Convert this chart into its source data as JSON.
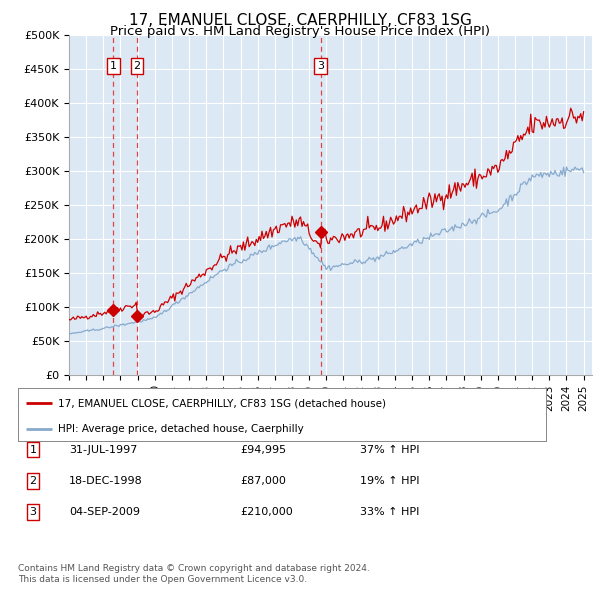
{
  "title": "17, EMANUEL CLOSE, CAERPHILLY, CF83 1SG",
  "subtitle": "Price paid vs. HM Land Registry's House Price Index (HPI)",
  "title_fontsize": 11,
  "subtitle_fontsize": 9.5,
  "ylim": [
    0,
    500000
  ],
  "yticks": [
    0,
    50000,
    100000,
    150000,
    200000,
    250000,
    300000,
    350000,
    400000,
    450000,
    500000
  ],
  "ytick_labels": [
    "£0",
    "£50K",
    "£100K",
    "£150K",
    "£200K",
    "£250K",
    "£300K",
    "£350K",
    "£400K",
    "£450K",
    "£500K"
  ],
  "xlim_start": 1995.0,
  "xlim_end": 2025.5,
  "plot_bg_color": "#dce9f5",
  "grid_color": "#ffffff",
  "red_line_color": "#cc0000",
  "blue_line_color": "#88aacc",
  "marker_color": "#cc0000",
  "sale1_date": "31-JUL-1997",
  "sale1_price": 94995,
  "sale1_x": 1997.58,
  "sale1_label": "37% ↑ HPI",
  "sale2_date": "18-DEC-1998",
  "sale2_price": 87000,
  "sale2_x": 1998.96,
  "sale2_label": "19% ↑ HPI",
  "sale3_date": "04-SEP-2009",
  "sale3_price": 210000,
  "sale3_x": 2009.67,
  "sale3_label": "33% ↑ HPI",
  "legend_line1": "17, EMANUEL CLOSE, CAERPHILLY, CF83 1SG (detached house)",
  "legend_line2": "HPI: Average price, detached house, Caerphilly",
  "footer1": "Contains HM Land Registry data © Crown copyright and database right 2024.",
  "footer2": "This data is licensed under the Open Government Licence v3.0."
}
